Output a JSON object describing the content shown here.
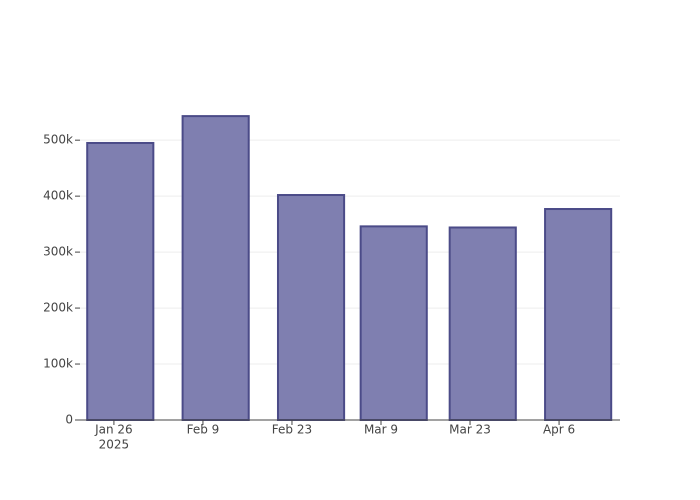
{
  "chart_data": {
    "type": "bar",
    "x": [
      "2025-01-27",
      "2025-02-11",
      "2025-02-26",
      "2025-03-11",
      "2025-03-25",
      "2025-04-09"
    ],
    "values": [
      495000,
      543000,
      402000,
      346000,
      344000,
      377000
    ],
    "color": "#7f7fb0",
    "edge_color": "#4b4b88",
    "xlim": [
      "2025-01-20T16:00",
      "2025-04-15T14:00"
    ],
    "xticks": [
      {
        "value": "2025-01-26",
        "label": "Jan 26"
      },
      {
        "value": "2025-02-09",
        "label": "Feb 9"
      },
      {
        "value": "2025-02-23",
        "label": "Feb 23"
      },
      {
        "value": "2025-03-09",
        "label": "Mar 9"
      },
      {
        "value": "2025-03-23",
        "label": "Mar 23"
      },
      {
        "value": "2025-04-06",
        "label": "Apr 6"
      }
    ],
    "x_year": "2025",
    "ylim": [
      0,
      570000
    ],
    "yticks": [
      0,
      {
        "value": 100000,
        "label": "100k"
      },
      {
        "value": 200000,
        "label": "200k"
      },
      {
        "value": 300000,
        "label": "300k"
      },
      {
        "value": 400000,
        "label": "400k"
      },
      {
        "value": 500000,
        "label": "500k"
      }
    ],
    "grid": true
  }
}
